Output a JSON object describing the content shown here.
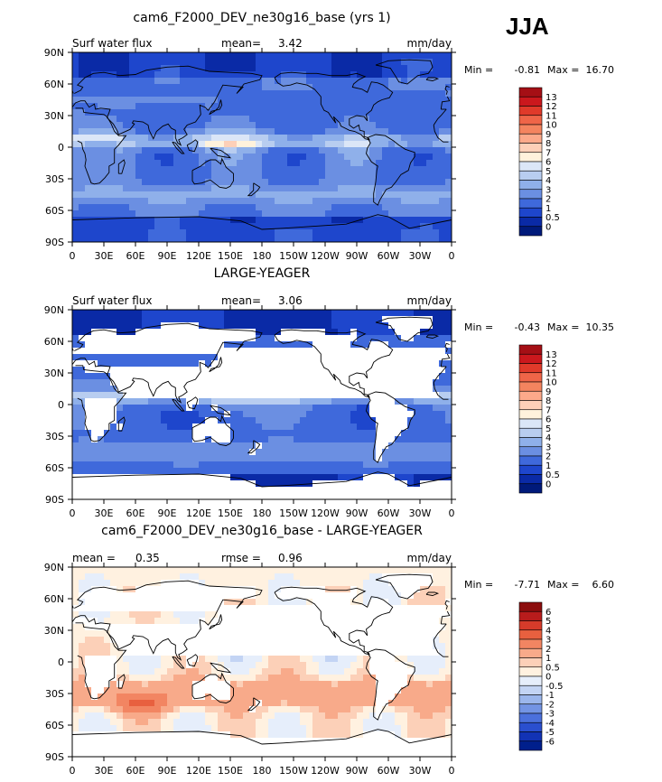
{
  "season": "JJA",
  "chart_data": [
    {
      "type": "heatmap",
      "title": "cam6_F2000_DEV_ne30g16_base (yrs 1)",
      "subtitle_left": "Surf water flux",
      "stat_label": "mean=",
      "stat_value": "3.42",
      "units": "mm/day",
      "min_label": "Min =",
      "min_value": "-0.81",
      "max_label": "Max =",
      "max_value": "16.70",
      "lat_ticks": [
        "90N",
        "60N",
        "30N",
        "0",
        "30S",
        "60S",
        "90S"
      ],
      "lon_ticks": [
        "0",
        "30E",
        "60E",
        "90E",
        "120E",
        "150E",
        "180",
        "150W",
        "120W",
        "90W",
        "60W",
        "30W",
        "0"
      ],
      "lat_range": [
        -90,
        90
      ],
      "lon_range": [
        0,
        360
      ],
      "colorbar_labels": [
        "13",
        "12",
        "11",
        "10",
        "9",
        "8",
        "7",
        "6",
        "5",
        "4",
        "3",
        "2",
        "1",
        "0.5",
        "0"
      ],
      "colorbar_colors": [
        "#a50f15",
        "#cb181d",
        "#e03a2a",
        "#ef6548",
        "#f4845f",
        "#fca98a",
        "#fdd0b8",
        "#fff2dc",
        "#dbe6f7",
        "#b8cdf0",
        "#8fb0ea",
        "#6b8fe2",
        "#3f69db",
        "#1e46cc",
        "#0a2aa6",
        "#001a7a"
      ]
    },
    {
      "type": "heatmap",
      "title": "LARGE-YEAGER",
      "subtitle_left": "Surf water flux",
      "stat_label": "mean=",
      "stat_value": "3.06",
      "units": "mm/day",
      "min_label": "Min =",
      "min_value": "-0.43",
      "max_label": "Max =",
      "max_value": "10.35",
      "lat_ticks": [
        "90N",
        "60N",
        "30N",
        "0",
        "30S",
        "60S",
        "90S"
      ],
      "lon_ticks": [
        "0",
        "30E",
        "60E",
        "90E",
        "120E",
        "150E",
        "180",
        "150W",
        "120W",
        "90W",
        "60W",
        "30W",
        "0"
      ],
      "lat_range": [
        -90,
        90
      ],
      "lon_range": [
        0,
        360
      ],
      "colorbar_labels": [
        "13",
        "12",
        "11",
        "10",
        "9",
        "8",
        "7",
        "6",
        "5",
        "4",
        "3",
        "2",
        "1",
        "0.5",
        "0"
      ],
      "colorbar_colors": [
        "#a50f15",
        "#cb181d",
        "#e03a2a",
        "#ef6548",
        "#f4845f",
        "#fca98a",
        "#fdd0b8",
        "#fff2dc",
        "#dbe6f7",
        "#b8cdf0",
        "#8fb0ea",
        "#6b8fe2",
        "#3f69db",
        "#1e46cc",
        "#0a2aa6",
        "#001a7a"
      ]
    },
    {
      "type": "heatmap",
      "title": "cam6_F2000_DEV_ne30g16_base - LARGE-YEAGER",
      "subtitle_left_label": "mean =",
      "subtitle_left_value": "0.35",
      "stat_label": "rmse =",
      "stat_value": "0.96",
      "units": "mm/day",
      "min_label": "Min =",
      "min_value": "-7.71",
      "max_label": "Max =",
      "max_value": "6.60",
      "lat_ticks": [
        "90N",
        "60N",
        "30N",
        "0",
        "30S",
        "60S",
        "90S"
      ],
      "lon_ticks": [
        "0",
        "30E",
        "60E",
        "90E",
        "120E",
        "150E",
        "180",
        "150W",
        "120W",
        "90W",
        "60W",
        "30W",
        "0"
      ],
      "lat_range": [
        -90,
        90
      ],
      "lon_range": [
        0,
        360
      ],
      "colorbar_labels": [
        "6",
        "5",
        "4",
        "3",
        "2",
        "1",
        "0.5",
        "0",
        "-0.5",
        "-1",
        "-2",
        "-3",
        "-4",
        "-5",
        "-6"
      ],
      "colorbar_colors": [
        "#8c0d0d",
        "#b81c1c",
        "#d63b2a",
        "#e8603f",
        "#f28562",
        "#f8aa8a",
        "#fcd0b8",
        "#fff1e0",
        "#e6eefb",
        "#c3d4f4",
        "#9bb6ec",
        "#7394e4",
        "#4b70dc",
        "#2a4fcf",
        "#1233b5",
        "#001f8c"
      ]
    }
  ]
}
